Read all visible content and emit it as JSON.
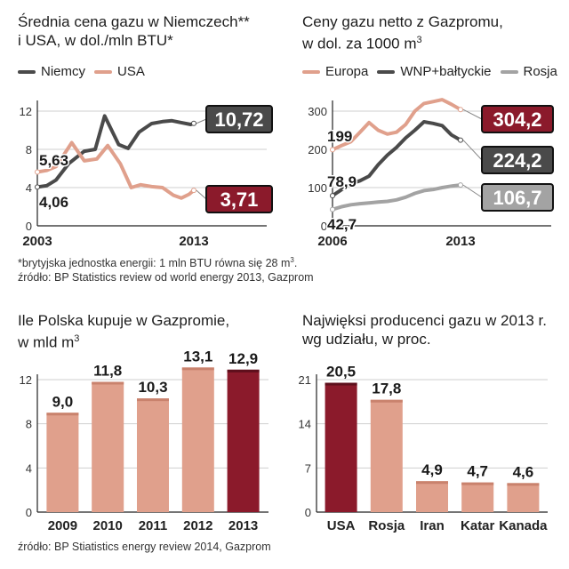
{
  "colors": {
    "accent_red": "#8b1a2b",
    "salmon": "#e0a08c",
    "dark": "#4a4a4a",
    "gray": "#a3a3a3",
    "grid": "#cfcfcf",
    "axis": "#222222"
  },
  "titles": {
    "c1_line1": "Średnia cena gazu w Niemczech**",
    "c1_line2": "i USA, w dol./mln BTU*",
    "c2_line1": "Ceny gazu netto z Gazpromu,",
    "c2_line2_pre": "w dol. za 1000 m",
    "c2_line2_sup": "3",
    "c3_line1": "Ile Polska kupuje w Gazpromie,",
    "c3_line2_pre": "w mld m",
    "c3_line2_sup": "3",
    "c4_line1": "Najwięksi producenci gazu w 2013 r.",
    "c4_line2": "wg udziału, w proc."
  },
  "notes": {
    "n1_pre": "*brytyjska jednostka energii: 1 mln BTU równa się 28 m",
    "n1_sup": "3",
    "n1_post": ".",
    "n2": "źródło: BP Statistics review od world energy 2013, Gazprom",
    "n3": "źródło: BP Stiatistics energy review 2014, Gazprom"
  },
  "chart_data": [
    {
      "id": "c1",
      "type": "line",
      "title": "Średnia cena gazu w Niemczech** i USA, w dol./mln BTU*",
      "ylim": [
        0,
        12
      ],
      "yticks": [
        "0",
        "4",
        "8",
        "12"
      ],
      "xlim": [
        2003,
        2013
      ],
      "xtick_labels": [
        "2003",
        "2013"
      ],
      "grid": true,
      "series": [
        {
          "name": "Niemcy",
          "color": "#4a4a4a",
          "x": [
            2003,
            2003.6,
            2004.2,
            2005,
            2006,
            2006.7,
            2007.3,
            2008.2,
            2008.8,
            2009.5,
            2010.3,
            2011,
            2011.6,
            2012.2,
            2012.8,
            2013
          ],
          "y": [
            4.06,
            4.2,
            4.8,
            6.5,
            7.8,
            8.0,
            11.5,
            8.5,
            8.1,
            9.8,
            10.7,
            10.9,
            11.0,
            10.8,
            10.6,
            10.72
          ],
          "start_label": "4,06",
          "end_label": "10,72",
          "end_box_color": "#4a4a4a"
        },
        {
          "name": "USA",
          "color": "#e0a08c",
          "x": [
            2003,
            2003.6,
            2004.2,
            2005.2,
            2006,
            2006.8,
            2007.5,
            2008.3,
            2009,
            2009.6,
            2010.3,
            2011,
            2011.7,
            2012.2,
            2012.7,
            2013
          ],
          "y": [
            5.63,
            5.8,
            6.2,
            8.7,
            6.8,
            7.0,
            8.4,
            6.5,
            4.0,
            4.3,
            4.1,
            4.0,
            3.2,
            2.9,
            3.3,
            3.71
          ],
          "start_label": "5,63",
          "end_label": "3,71",
          "end_box_color": "#8b1a2b"
        }
      ]
    },
    {
      "id": "c2",
      "type": "line",
      "title": "Ceny gazu netto z Gazpromu, w dol. za 1000 m3",
      "ylim": [
        0,
        300
      ],
      "yticks": [
        "0",
        "100",
        "200",
        "300"
      ],
      "xlim": [
        2006,
        2013
      ],
      "xtick_labels": [
        "2006",
        "2013"
      ],
      "grid": true,
      "series": [
        {
          "name": "Europa",
          "color": "#e0a08c",
          "x": [
            2006,
            2006.5,
            2007,
            2007.5,
            2008,
            2008.5,
            2009,
            2009.5,
            2010,
            2010.5,
            2011,
            2011.5,
            2012,
            2012.5,
            2013
          ],
          "y": [
            199,
            210,
            220,
            245,
            270,
            250,
            240,
            245,
            265,
            300,
            320,
            325,
            330,
            318,
            304.2
          ],
          "start_label": "199",
          "end_label": "304,2",
          "end_box_color": "#8b1a2b"
        },
        {
          "name": "WNP+bałtyckie",
          "color": "#4a4a4a",
          "x": [
            2006,
            2006.5,
            2007,
            2007.5,
            2008,
            2008.5,
            2009,
            2009.5,
            2010,
            2010.5,
            2011,
            2011.5,
            2012,
            2012.5,
            2013
          ],
          "y": [
            78.9,
            95,
            110,
            118,
            130,
            160,
            185,
            205,
            230,
            250,
            272,
            268,
            262,
            238,
            224.2
          ],
          "start_label": "78,9",
          "end_label": "224,2",
          "end_box_color": "#4a4a4a"
        },
        {
          "name": "Rosja",
          "color": "#a3a3a3",
          "x": [
            2006,
            2006.5,
            2007,
            2007.5,
            2008,
            2008.5,
            2009,
            2009.5,
            2010,
            2010.5,
            2011,
            2011.5,
            2012,
            2012.5,
            2013
          ],
          "y": [
            42.7,
            50,
            55,
            58,
            60,
            62,
            64,
            68,
            75,
            85,
            92,
            95,
            100,
            104,
            106.7
          ],
          "start_label": "42,7",
          "end_label": "106,7",
          "end_box_color": "#a3a3a3"
        }
      ]
    },
    {
      "id": "c3",
      "type": "bar",
      "title": "Ile Polska kupuje w Gazpromie, w mld m3",
      "categories": [
        "2009",
        "2010",
        "2011",
        "2012",
        "2013"
      ],
      "values": [
        9.0,
        11.8,
        10.3,
        13.1,
        12.9
      ],
      "labels": [
        "9,0",
        "11,8",
        "10,3",
        "13,1",
        "12,9"
      ],
      "colors": [
        "#e0a08c",
        "#e0a08c",
        "#e0a08c",
        "#e0a08c",
        "#8b1a2b"
      ],
      "ylim": [
        0,
        12
      ],
      "yticks": [
        "0",
        "4",
        "8",
        "12"
      ],
      "grid": true
    },
    {
      "id": "c4",
      "type": "bar",
      "title": "Najwięksi producenci gazu w 2013 r. wg udziału, w proc.",
      "categories": [
        "USA",
        "Rosja",
        "Iran",
        "Katar",
        "Kanada"
      ],
      "values": [
        20.5,
        17.8,
        4.9,
        4.7,
        4.6
      ],
      "labels": [
        "20,5",
        "17,8",
        "4,9",
        "4,7",
        "4,6"
      ],
      "colors": [
        "#8b1a2b",
        "#e0a08c",
        "#e0a08c",
        "#e0a08c",
        "#e0a08c"
      ],
      "ylim": [
        0,
        21
      ],
      "yticks": [
        "0",
        "7",
        "14",
        "21"
      ],
      "grid": true
    }
  ]
}
